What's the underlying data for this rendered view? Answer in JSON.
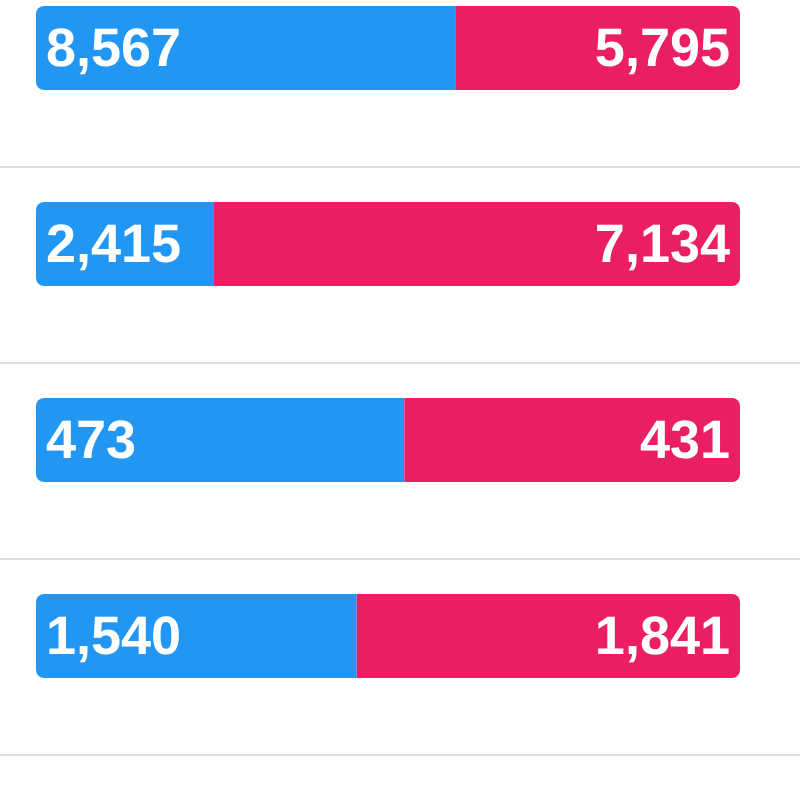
{
  "chart_data": [
    {
      "type": "bar",
      "orientation": "horizontal",
      "stacked": true,
      "categories": [
        null
      ],
      "tick_labels": false,
      "series": [
        {
          "color": "#2196f3",
          "values": [
            8567
          ],
          "value_labels": [
            "8,567"
          ]
        },
        {
          "color": "#e91e63",
          "values": [
            5795
          ],
          "value_labels": [
            "5,795"
          ]
        }
      ]
    },
    {
      "type": "bar",
      "orientation": "horizontal",
      "stacked": true,
      "categories": [
        null
      ],
      "tick_labels": false,
      "series": [
        {
          "color": "#2196f3",
          "values": [
            2415
          ],
          "value_labels": [
            "2,415"
          ]
        },
        {
          "color": "#e91e63",
          "values": [
            7134
          ],
          "value_labels": [
            "7,134"
          ]
        }
      ]
    },
    {
      "type": "bar",
      "orientation": "horizontal",
      "stacked": true,
      "categories": [
        null
      ],
      "tick_labels": false,
      "series": [
        {
          "color": "#2196f3",
          "values": [
            473
          ],
          "value_labels": [
            "473"
          ]
        },
        {
          "color": "#e91e63",
          "values": [
            431
          ],
          "value_labels": [
            "431"
          ]
        }
      ]
    },
    {
      "type": "bar",
      "orientation": "horizontal",
      "stacked": true,
      "categories": [
        null
      ],
      "tick_labels": false,
      "series": [
        {
          "color": "#2196f3",
          "values": [
            1540
          ],
          "value_labels": [
            "1,540"
          ]
        },
        {
          "color": "#e91e63",
          "values": [
            1841
          ],
          "value_labels": [
            "1,841"
          ]
        }
      ]
    }
  ]
}
